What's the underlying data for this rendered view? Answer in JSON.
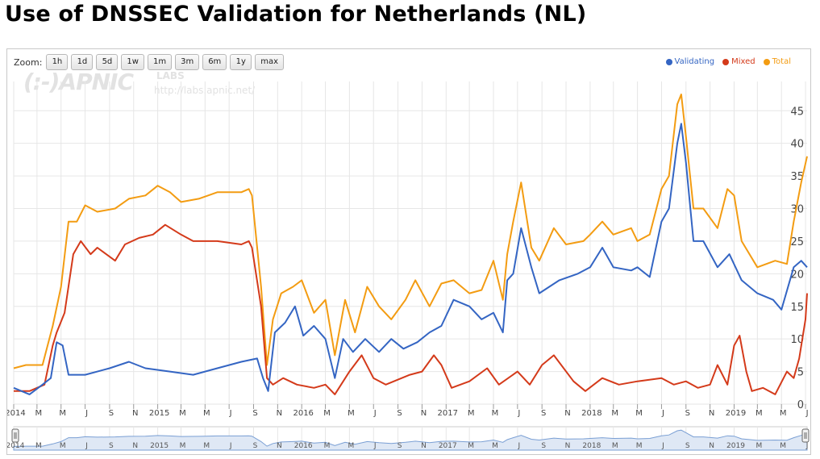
{
  "page": {
    "title": "Use of DNSSEC Validation for Netherlands (NL)"
  },
  "zoom": {
    "label": "Zoom:",
    "buttons": [
      "1h",
      "1d",
      "5d",
      "1w",
      "1m",
      "3m",
      "6m",
      "1y",
      "max"
    ]
  },
  "watermark": {
    "logo": "(:-)APNIC",
    "labs": "LABS",
    "url": "http://labs.apnic.net/"
  },
  "colors": {
    "validating": "#3465c3",
    "mixed": "#d43a1a",
    "total": "#f39c12",
    "grid": "#e6e6e6",
    "navigator_fill": "#dfe8f5",
    "navigator_line": "#7a9fd4"
  },
  "chart_data": {
    "type": "line",
    "title": "Use of DNSSEC Validation for Netherlands (NL)",
    "xlabel": "",
    "ylabel": "",
    "ylim": [
      0,
      48
    ],
    "y_ticks": [
      0,
      5,
      10,
      15,
      20,
      25,
      30,
      35,
      40,
      45
    ],
    "xlim": [
      "2014-01-01",
      "2019-07-05"
    ],
    "x_tick_labels": [
      {
        "d": "2014-01-01",
        "t": "2014"
      },
      {
        "d": "2014-03-01",
        "t": "M"
      },
      {
        "d": "2014-05-01",
        "t": "M"
      },
      {
        "d": "2014-07-01",
        "t": "J"
      },
      {
        "d": "2014-09-01",
        "t": "S"
      },
      {
        "d": "2014-11-01",
        "t": "N"
      },
      {
        "d": "2015-01-01",
        "t": "2015"
      },
      {
        "d": "2015-03-01",
        "t": "M"
      },
      {
        "d": "2015-05-01",
        "t": "M"
      },
      {
        "d": "2015-07-01",
        "t": "J"
      },
      {
        "d": "2015-09-01",
        "t": "S"
      },
      {
        "d": "2015-11-01",
        "t": "N"
      },
      {
        "d": "2016-01-01",
        "t": "2016"
      },
      {
        "d": "2016-03-01",
        "t": "M"
      },
      {
        "d": "2016-05-01",
        "t": "M"
      },
      {
        "d": "2016-07-01",
        "t": "J"
      },
      {
        "d": "2016-09-01",
        "t": "S"
      },
      {
        "d": "2016-11-01",
        "t": "N"
      },
      {
        "d": "2017-01-01",
        "t": "2017"
      },
      {
        "d": "2017-03-01",
        "t": "M"
      },
      {
        "d": "2017-05-01",
        "t": "M"
      },
      {
        "d": "2017-07-01",
        "t": "J"
      },
      {
        "d": "2017-09-01",
        "t": "S"
      },
      {
        "d": "2017-11-01",
        "t": "N"
      },
      {
        "d": "2018-01-01",
        "t": "2018"
      },
      {
        "d": "2018-03-01",
        "t": "M"
      },
      {
        "d": "2018-05-01",
        "t": "M"
      },
      {
        "d": "2018-07-01",
        "t": "J"
      },
      {
        "d": "2018-09-01",
        "t": "S"
      },
      {
        "d": "2018-11-01",
        "t": "N"
      },
      {
        "d": "2019-01-01",
        "t": "2019"
      },
      {
        "d": "2019-03-01",
        "t": "M"
      },
      {
        "d": "2019-05-01",
        "t": "M"
      },
      {
        "d": "2019-07-01",
        "t": "J"
      }
    ],
    "legend_position": "top-right",
    "grid": true,
    "series": [
      {
        "name": "Validating",
        "color": "#3465c3",
        "points": [
          [
            "2014-01-01",
            2.5
          ],
          [
            "2014-02-10",
            1.5
          ],
          [
            "2014-03-15",
            3
          ],
          [
            "2014-04-05",
            4
          ],
          [
            "2014-04-20",
            9.5
          ],
          [
            "2014-05-05",
            9
          ],
          [
            "2014-05-20",
            4.5
          ],
          [
            "2014-07-01",
            4.5
          ],
          [
            "2014-09-01",
            5.5
          ],
          [
            "2014-10-20",
            6.5
          ],
          [
            "2014-12-01",
            5.5
          ],
          [
            "2015-02-01",
            5
          ],
          [
            "2015-04-01",
            4.5
          ],
          [
            "2015-06-01",
            5.5
          ],
          [
            "2015-08-01",
            6.5
          ],
          [
            "2015-09-10",
            7
          ],
          [
            "2015-09-25",
            4
          ],
          [
            "2015-10-08",
            2
          ],
          [
            "2015-10-25",
            11
          ],
          [
            "2015-11-20",
            12.5
          ],
          [
            "2015-12-15",
            15
          ],
          [
            "2016-01-05",
            10.5
          ],
          [
            "2016-02-01",
            12
          ],
          [
            "2016-03-01",
            10
          ],
          [
            "2016-03-25",
            4
          ],
          [
            "2016-04-15",
            10
          ],
          [
            "2016-05-10",
            8
          ],
          [
            "2016-06-10",
            10
          ],
          [
            "2016-07-15",
            8
          ],
          [
            "2016-08-15",
            10
          ],
          [
            "2016-09-15",
            8.5
          ],
          [
            "2016-10-20",
            9.5
          ],
          [
            "2016-11-20",
            11
          ],
          [
            "2016-12-20",
            12
          ],
          [
            "2017-01-20",
            16
          ],
          [
            "2017-03-01",
            15
          ],
          [
            "2017-04-01",
            13
          ],
          [
            "2017-05-01",
            14
          ],
          [
            "2017-05-25",
            11
          ],
          [
            "2017-06-05",
            19
          ],
          [
            "2017-06-20",
            20
          ],
          [
            "2017-07-10",
            27
          ],
          [
            "2017-08-05",
            21
          ],
          [
            "2017-08-25",
            17
          ],
          [
            "2017-10-15",
            19
          ],
          [
            "2017-12-01",
            20
          ],
          [
            "2018-01-01",
            21
          ],
          [
            "2018-02-01",
            24
          ],
          [
            "2018-03-01",
            21
          ],
          [
            "2018-04-15",
            20.5
          ],
          [
            "2018-05-01",
            21
          ],
          [
            "2018-06-01",
            19.5
          ],
          [
            "2018-07-01",
            28
          ],
          [
            "2018-07-20",
            30
          ],
          [
            "2018-08-10",
            40
          ],
          [
            "2018-08-20",
            43
          ],
          [
            "2018-09-01",
            37
          ],
          [
            "2018-09-20",
            25
          ],
          [
            "2018-10-15",
            25
          ],
          [
            "2018-11-20",
            21
          ],
          [
            "2018-12-20",
            23
          ],
          [
            "2019-01-20",
            19
          ],
          [
            "2019-03-01",
            17
          ],
          [
            "2019-04-10",
            16
          ],
          [
            "2019-05-01",
            14.5
          ],
          [
            "2019-06-01",
            21
          ],
          [
            "2019-06-20",
            22
          ],
          [
            "2019-07-05",
            21
          ]
        ]
      },
      {
        "name": "Mixed",
        "color": "#d43a1a",
        "points": [
          [
            "2014-01-01",
            2
          ],
          [
            "2014-02-10",
            2
          ],
          [
            "2014-03-20",
            3
          ],
          [
            "2014-04-10",
            9
          ],
          [
            "2014-04-20",
            11
          ],
          [
            "2014-05-10",
            14
          ],
          [
            "2014-06-01",
            23
          ],
          [
            "2014-06-20",
            25
          ],
          [
            "2014-07-15",
            23
          ],
          [
            "2014-08-01",
            24
          ],
          [
            "2014-09-15",
            22
          ],
          [
            "2014-10-10",
            24.5
          ],
          [
            "2014-11-15",
            25.5
          ],
          [
            "2014-12-20",
            26
          ],
          [
            "2015-01-20",
            27.5
          ],
          [
            "2015-03-01",
            26
          ],
          [
            "2015-04-01",
            25
          ],
          [
            "2015-06-01",
            25
          ],
          [
            "2015-08-01",
            24.5
          ],
          [
            "2015-08-20",
            25
          ],
          [
            "2015-08-28",
            24
          ],
          [
            "2015-09-20",
            15
          ],
          [
            "2015-10-05",
            4
          ],
          [
            "2015-10-20",
            3
          ],
          [
            "2015-11-15",
            4
          ],
          [
            "2015-12-20",
            3
          ],
          [
            "2016-02-01",
            2.5
          ],
          [
            "2016-03-01",
            3
          ],
          [
            "2016-03-25",
            1.5
          ],
          [
            "2016-05-01",
            5
          ],
          [
            "2016-06-01",
            7.5
          ],
          [
            "2016-07-01",
            4
          ],
          [
            "2016-08-01",
            3
          ],
          [
            "2016-10-01",
            4.5
          ],
          [
            "2016-11-01",
            5
          ],
          [
            "2016-12-01",
            7.5
          ],
          [
            "2016-12-20",
            6
          ],
          [
            "2017-01-15",
            2.5
          ],
          [
            "2017-03-01",
            3.5
          ],
          [
            "2017-04-15",
            5.5
          ],
          [
            "2017-05-15",
            3
          ],
          [
            "2017-07-01",
            5
          ],
          [
            "2017-08-01",
            3
          ],
          [
            "2017-09-01",
            6
          ],
          [
            "2017-10-01",
            7.5
          ],
          [
            "2017-11-20",
            3.5
          ],
          [
            "2017-12-20",
            2
          ],
          [
            "2018-02-01",
            4
          ],
          [
            "2018-03-15",
            3
          ],
          [
            "2018-05-01",
            3.5
          ],
          [
            "2018-07-01",
            4
          ],
          [
            "2018-08-01",
            3
          ],
          [
            "2018-09-01",
            3.5
          ],
          [
            "2018-10-01",
            2.5
          ],
          [
            "2018-11-01",
            3
          ],
          [
            "2018-11-20",
            6
          ],
          [
            "2018-12-15",
            3
          ],
          [
            "2019-01-01",
            9
          ],
          [
            "2019-01-15",
            10.5
          ],
          [
            "2019-02-01",
            5
          ],
          [
            "2019-02-15",
            2
          ],
          [
            "2019-03-15",
            2.5
          ],
          [
            "2019-04-15",
            1.5
          ],
          [
            "2019-05-15",
            5
          ],
          [
            "2019-06-01",
            4
          ],
          [
            "2019-06-15",
            7
          ],
          [
            "2019-07-01",
            13
          ],
          [
            "2019-07-05",
            17
          ]
        ]
      },
      {
        "name": "Total",
        "color": "#f39c12",
        "points": [
          [
            "2014-01-01",
            5.5
          ],
          [
            "2014-02-01",
            6
          ],
          [
            "2014-03-15",
            6
          ],
          [
            "2014-04-10",
            12
          ],
          [
            "2014-05-01",
            18
          ],
          [
            "2014-05-20",
            28
          ],
          [
            "2014-06-10",
            28
          ],
          [
            "2014-07-01",
            30.5
          ],
          [
            "2014-08-01",
            29.5
          ],
          [
            "2014-09-15",
            30
          ],
          [
            "2014-10-20",
            31.5
          ],
          [
            "2014-12-01",
            32
          ],
          [
            "2015-01-01",
            33.5
          ],
          [
            "2015-02-01",
            32.5
          ],
          [
            "2015-03-01",
            31
          ],
          [
            "2015-04-15",
            31.5
          ],
          [
            "2015-06-01",
            32.5
          ],
          [
            "2015-08-01",
            32.5
          ],
          [
            "2015-08-20",
            33
          ],
          [
            "2015-08-28",
            32
          ],
          [
            "2015-09-20",
            18
          ],
          [
            "2015-10-05",
            6
          ],
          [
            "2015-10-20",
            13
          ],
          [
            "2015-11-10",
            17
          ],
          [
            "2015-12-10",
            18
          ],
          [
            "2016-01-01",
            19
          ],
          [
            "2016-02-01",
            14
          ],
          [
            "2016-03-01",
            16
          ],
          [
            "2016-03-25",
            7.5
          ],
          [
            "2016-04-20",
            16
          ],
          [
            "2016-05-15",
            11
          ],
          [
            "2016-06-15",
            18
          ],
          [
            "2016-07-15",
            15
          ],
          [
            "2016-08-15",
            13
          ],
          [
            "2016-09-20",
            16
          ],
          [
            "2016-10-15",
            19
          ],
          [
            "2016-11-20",
            15
          ],
          [
            "2016-12-20",
            18.5
          ],
          [
            "2017-01-20",
            19
          ],
          [
            "2017-03-01",
            17
          ],
          [
            "2017-04-01",
            17.5
          ],
          [
            "2017-05-01",
            22
          ],
          [
            "2017-05-25",
            16
          ],
          [
            "2017-06-05",
            23
          ],
          [
            "2017-06-20",
            28
          ],
          [
            "2017-07-10",
            34
          ],
          [
            "2017-08-05",
            24
          ],
          [
            "2017-08-25",
            22
          ],
          [
            "2017-10-01",
            27
          ],
          [
            "2017-11-01",
            24.5
          ],
          [
            "2017-12-15",
            25
          ],
          [
            "2018-01-01",
            26
          ],
          [
            "2018-02-01",
            28
          ],
          [
            "2018-03-01",
            26
          ],
          [
            "2018-04-15",
            27
          ],
          [
            "2018-05-01",
            25
          ],
          [
            "2018-06-01",
            26
          ],
          [
            "2018-07-01",
            33
          ],
          [
            "2018-07-20",
            35
          ],
          [
            "2018-08-10",
            46
          ],
          [
            "2018-08-20",
            47.5
          ],
          [
            "2018-09-01",
            41
          ],
          [
            "2018-09-20",
            30
          ],
          [
            "2018-10-15",
            30
          ],
          [
            "2018-11-20",
            27
          ],
          [
            "2018-12-15",
            33
          ],
          [
            "2019-01-01",
            32
          ],
          [
            "2019-01-20",
            25
          ],
          [
            "2019-03-01",
            21
          ],
          [
            "2019-04-15",
            22
          ],
          [
            "2019-05-15",
            21.5
          ],
          [
            "2019-06-01",
            28
          ],
          [
            "2019-06-20",
            34
          ],
          [
            "2019-07-05",
            38
          ]
        ]
      }
    ]
  }
}
